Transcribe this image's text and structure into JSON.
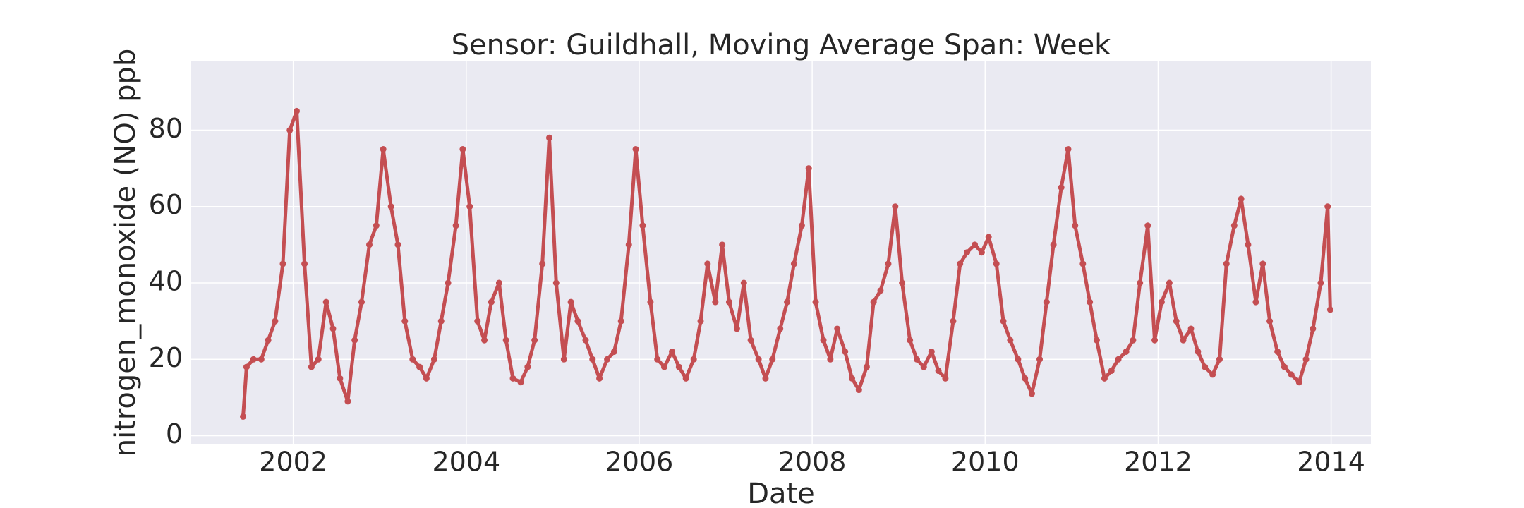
{
  "chart_data": {
    "type": "scatter",
    "title": "Sensor: Guildhall, Moving Average Span: Week",
    "xlabel": "Date",
    "ylabel": "nitrogen_monoxide (NO) ppb",
    "color": "#c44e52",
    "grid": true,
    "xlim": [
      2000.82,
      2014.46
    ],
    "ylim": [
      -2.3,
      98
    ],
    "xticks": [
      2002,
      2004,
      2006,
      2008,
      2010,
      2012,
      2014
    ],
    "yticks": [
      0,
      20,
      40,
      60,
      80
    ],
    "x": [
      2001.42,
      2001.46,
      2001.54,
      2001.63,
      2001.71,
      2001.79,
      2001.88,
      2001.96,
      2002.04,
      2002.13,
      2002.21,
      2002.29,
      2002.38,
      2002.46,
      2002.54,
      2002.63,
      2002.71,
      2002.79,
      2002.88,
      2002.96,
      2003.04,
      2003.13,
      2003.21,
      2003.29,
      2003.38,
      2003.46,
      2003.54,
      2003.63,
      2003.71,
      2003.79,
      2003.88,
      2003.96,
      2004.04,
      2004.13,
      2004.21,
      2004.29,
      2004.38,
      2004.46,
      2004.54,
      2004.63,
      2004.71,
      2004.79,
      2004.88,
      2004.96,
      2005.04,
      2005.13,
      2005.21,
      2005.29,
      2005.38,
      2005.46,
      2005.54,
      2005.63,
      2005.71,
      2005.79,
      2005.88,
      2005.96,
      2006.04,
      2006.13,
      2006.21,
      2006.29,
      2006.38,
      2006.46,
      2006.54,
      2006.63,
      2006.71,
      2006.79,
      2006.88,
      2006.96,
      2007.04,
      2007.13,
      2007.21,
      2007.29,
      2007.38,
      2007.46,
      2007.54,
      2007.63,
      2007.71,
      2007.79,
      2007.88,
      2007.96,
      2008.04,
      2008.13,
      2008.21,
      2008.29,
      2008.38,
      2008.46,
      2008.54,
      2008.63,
      2008.71,
      2008.79,
      2008.88,
      2008.96,
      2009.04,
      2009.13,
      2009.21,
      2009.29,
      2009.38,
      2009.46,
      2009.54,
      2009.63,
      2009.71,
      2009.79,
      2009.88,
      2009.96,
      2010.04,
      2010.13,
      2010.21,
      2010.29,
      2010.38,
      2010.46,
      2010.54,
      2010.63,
      2010.71,
      2010.79,
      2010.88,
      2010.96,
      2011.04,
      2011.13,
      2011.21,
      2011.29,
      2011.38,
      2011.46,
      2011.54,
      2011.63,
      2011.71,
      2011.79,
      2011.88,
      2011.96,
      2012.04,
      2012.13,
      2012.21,
      2012.29,
      2012.38,
      2012.46,
      2012.54,
      2012.63,
      2012.71,
      2012.79,
      2012.88,
      2012.96,
      2013.04,
      2013.13,
      2013.21,
      2013.29,
      2013.38,
      2013.46,
      2013.54,
      2013.63,
      2013.71,
      2013.79,
      2013.88,
      2013.96,
      2013.99
    ],
    "values": [
      5,
      18,
      20,
      20,
      25,
      30,
      45,
      80,
      85,
      45,
      18,
      20,
      35,
      28,
      15,
      9,
      25,
      35,
      50,
      55,
      75,
      60,
      50,
      30,
      20,
      18,
      15,
      20,
      30,
      40,
      55,
      75,
      60,
      30,
      25,
      35,
      40,
      25,
      15,
      14,
      18,
      25,
      45,
      78,
      40,
      20,
      35,
      30,
      25,
      20,
      15,
      20,
      22,
      30,
      50,
      75,
      55,
      35,
      20,
      18,
      22,
      18,
      15,
      20,
      30,
      45,
      35,
      50,
      35,
      28,
      40,
      25,
      20,
      15,
      20,
      28,
      35,
      45,
      55,
      70,
      35,
      25,
      20,
      28,
      22,
      15,
      12,
      18,
      35,
      38,
      45,
      60,
      40,
      25,
      20,
      18,
      22,
      17,
      15,
      30,
      45,
      48,
      50,
      48,
      52,
      45,
      30,
      25,
      20,
      15,
      11,
      20,
      35,
      50,
      65,
      75,
      55,
      45,
      35,
      25,
      15,
      17,
      20,
      22,
      25,
      40,
      55,
      25,
      35,
      40,
      30,
      25,
      28,
      22,
      18,
      16,
      20,
      45,
      55,
      62,
      50,
      35,
      45,
      30,
      22,
      18,
      16,
      14,
      20,
      28,
      40,
      60,
      33
    ]
  }
}
